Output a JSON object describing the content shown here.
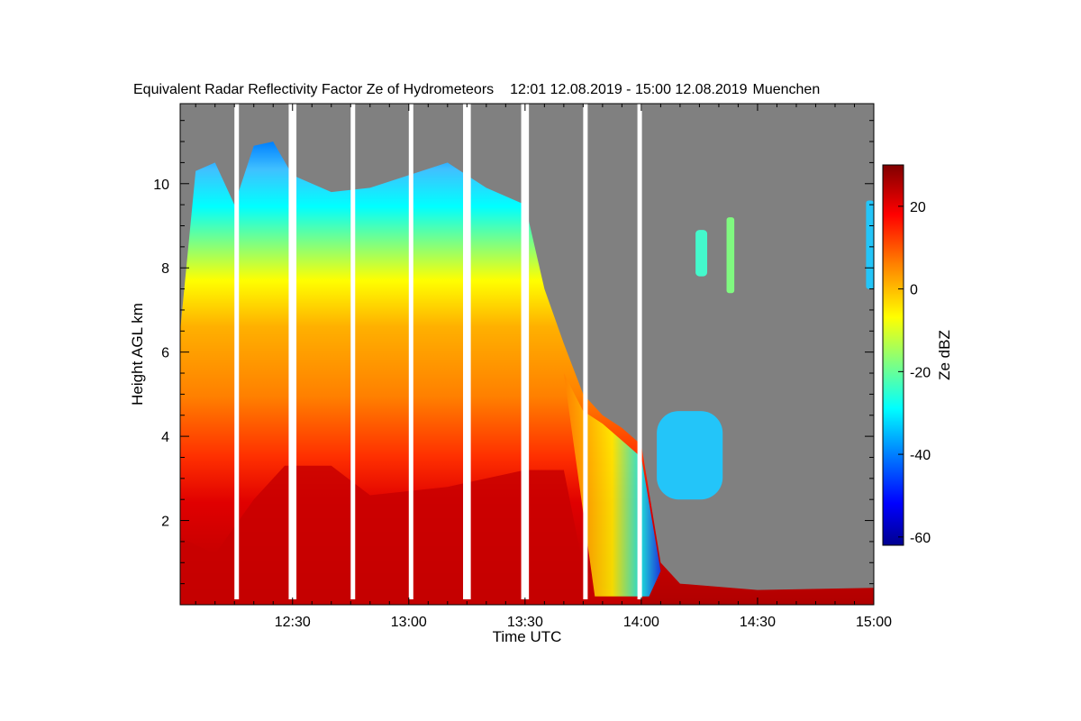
{
  "chart_data": {
    "type": "heatmap",
    "title": "Equivalent Radar Reflectivity Factor Ze of Hydrometeors",
    "time_range": "12:01 12.08.2019 - 15:00 12.08.2019",
    "location": "Muenchen",
    "xlabel": "Time UTC",
    "ylabel": "Height AGL km",
    "colorbar_label": "Ze dBZ",
    "xlim": [
      "12:01",
      "15:00"
    ],
    "ylim": [
      0,
      11.9
    ],
    "xticks": [
      "12:30",
      "13:00",
      "13:30",
      "14:00",
      "14:30",
      "15:00"
    ],
    "yticks": [
      2,
      4,
      6,
      8,
      10
    ],
    "colorbar_range": [
      -62,
      30
    ],
    "colorbar_ticks": [
      20,
      0,
      -20,
      -40,
      -60
    ],
    "colormap": [
      "#00008f",
      "#0000ff",
      "#0080ff",
      "#00ffff",
      "#80ff80",
      "#ffff00",
      "#ff8000",
      "#ff0000",
      "#800000"
    ],
    "no_signal_color": "#808080",
    "data_gaps_utc": [
      [
        "12:15",
        "12:16"
      ],
      [
        "12:29",
        "12:31"
      ],
      [
        "12:45",
        "12:46"
      ],
      [
        "13:00",
        "13:01"
      ],
      [
        "13:14",
        "13:16"
      ],
      [
        "13:29",
        "13:31"
      ],
      [
        "13:45",
        "13:46"
      ],
      [
        "13:59",
        "14:00"
      ]
    ],
    "echo_top_km": [
      [
        "12:01",
        6.5
      ],
      [
        "12:05",
        10.3
      ],
      [
        "12:10",
        10.5
      ],
      [
        "12:15",
        9.5
      ],
      [
        "12:20",
        10.9
      ],
      [
        "12:25",
        11.0
      ],
      [
        "12:30",
        10.2
      ],
      [
        "12:40",
        9.8
      ],
      [
        "12:50",
        9.9
      ],
      [
        "13:00",
        10.2
      ],
      [
        "13:10",
        10.5
      ],
      [
        "13:20",
        9.9
      ],
      [
        "13:30",
        9.5
      ],
      [
        "13:35",
        7.5
      ],
      [
        "13:40",
        6.2
      ],
      [
        "13:45",
        5.0
      ],
      [
        "13:50",
        4.5
      ],
      [
        "13:55",
        4.2
      ],
      [
        "14:00",
        3.8
      ],
      [
        "14:05",
        1.0
      ],
      [
        "14:10",
        0.5
      ],
      [
        "14:30",
        0.35
      ],
      [
        "15:00",
        0.4
      ]
    ],
    "intense_layer_top_km": [
      [
        "12:01",
        1.6
      ],
      [
        "12:10",
        1.2
      ],
      [
        "12:20",
        2.5
      ],
      [
        "12:28",
        3.3
      ],
      [
        "12:40",
        3.3
      ],
      [
        "12:50",
        2.6
      ],
      [
        "13:10",
        2.8
      ],
      [
        "13:30",
        3.2
      ],
      [
        "13:40",
        3.2
      ],
      [
        "13:45",
        0.9
      ],
      [
        "13:50",
        0.4
      ],
      [
        "14:00",
        0.2
      ]
    ],
    "cloud_patches": [
      {
        "time_utc": [
          "14:04",
          "14:21"
        ],
        "height_km": [
          2.5,
          4.6
        ],
        "ze_dbz": -30
      },
      {
        "time_utc": [
          "14:14",
          "14:17"
        ],
        "height_km": [
          7.8,
          8.9
        ],
        "ze_dbz": -22
      },
      {
        "time_utc": [
          "14:22",
          "14:24"
        ],
        "height_km": [
          7.4,
          9.2
        ],
        "ze_dbz": -15
      },
      {
        "time_utc": [
          "14:58",
          "15:00"
        ],
        "height_km": [
          7.5,
          9.6
        ],
        "ze_dbz": -28
      }
    ]
  }
}
